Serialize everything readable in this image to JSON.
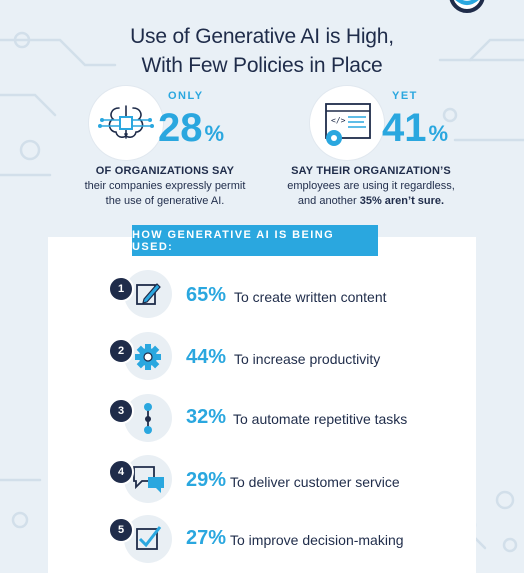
{
  "title": {
    "line1": "Use of Generative AI is High,",
    "line2": "With Few Policies in Place"
  },
  "stats": [
    {
      "kicker": "ONLY",
      "value": "28",
      "unit": "%",
      "icon": "brain-circuit-icon",
      "caption_bold": "OF ORGANIZATIONS SAY",
      "caption_lines": [
        "their companies expressly permit",
        "the use of generative AI."
      ]
    },
    {
      "kicker": "YET",
      "value": "41",
      "unit": "%",
      "icon": "code-window-gear-icon",
      "caption_bold": "SAY THEIR ORGANIZATION’S",
      "caption_lines": [
        "employees are using it regardless,"
      ],
      "caption_last_prefix": "and another ",
      "caption_last_bold": "35% aren’t sure."
    }
  ],
  "uses": {
    "header": "HOW GENERATIVE AI IS BEING USED:",
    "items": [
      {
        "number": "1",
        "percent": "65%",
        "label": "To create written content",
        "icon": "pencil-square-icon"
      },
      {
        "number": "2",
        "percent": "44%",
        "label": "To increase productivity",
        "icon": "gear-icon"
      },
      {
        "number": "3",
        "percent": "32%",
        "label": "To automate repetitive tasks",
        "icon": "workflow-icon"
      },
      {
        "number": "4",
        "percent": "29%",
        "label": "To deliver customer service",
        "icon": "chat-bubbles-icon"
      },
      {
        "number": "5",
        "percent": "27%",
        "label": "To improve decision-making",
        "icon": "checkbox-icon"
      }
    ]
  },
  "colors": {
    "accent": "#2aa7df",
    "navy": "#1f2c4a",
    "background": "#e9f0f6"
  }
}
